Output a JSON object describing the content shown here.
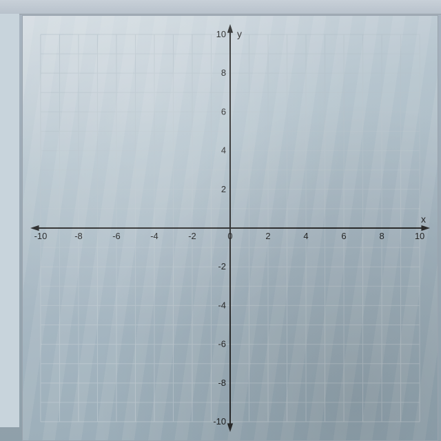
{
  "coordinate_plane": {
    "type": "scatter",
    "title": null,
    "x_axis": {
      "label": "x",
      "min": -10,
      "max": 10,
      "tick_major_step": 2,
      "tick_minor_step": 1,
      "tick_labels": [
        "-10",
        "-8",
        "-6",
        "-4",
        "-2",
        "0",
        "2",
        "4",
        "6",
        "8",
        "10"
      ],
      "tick_values": [
        -10,
        -8,
        -6,
        -4,
        -2,
        0,
        2,
        4,
        6,
        8,
        10
      ],
      "arrowheads": true
    },
    "y_axis": {
      "label": "y",
      "min": -10,
      "max": 10,
      "tick_major_step": 2,
      "tick_minor_step": 1,
      "tick_labels": [
        "-10",
        "-8",
        "-6",
        "-4",
        "-2",
        "",
        "2",
        "4",
        "6",
        "8",
        "10"
      ],
      "tick_values": [
        -10,
        -8,
        -6,
        -4,
        -2,
        0,
        2,
        4,
        6,
        8,
        10
      ],
      "arrowheads": true
    },
    "series": [],
    "grid": {
      "visible": true,
      "step": 1,
      "color": "#b8c4cc",
      "line_width": 1
    },
    "axis_color": "#2a2a2a",
    "axis_width": 2,
    "background_color": "#c4d0d8",
    "label_fontsize": 14,
    "tick_fontsize": 13,
    "aspect_ratio": 1.0
  }
}
